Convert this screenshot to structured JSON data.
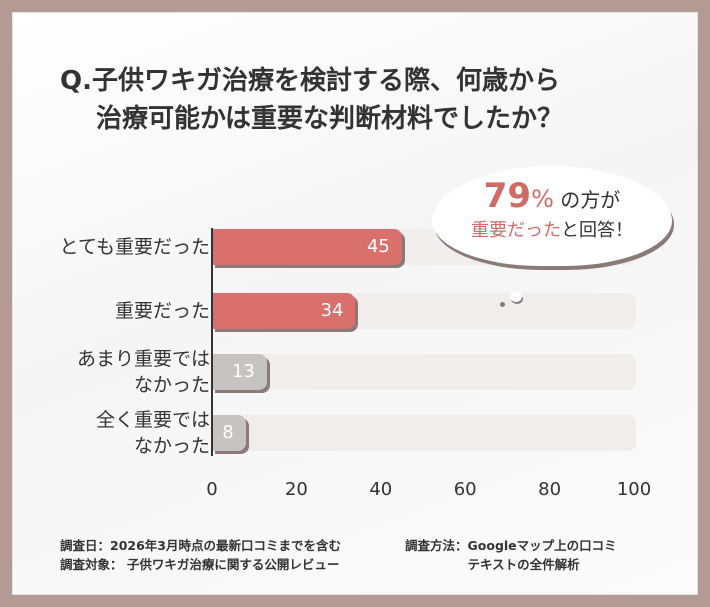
{
  "title": [
    "Q.子供ワキガ治療を検討する際、何歳から",
    "治療可能かは重要な判断材料でしたか？"
  ],
  "callout": {
    "percent": "79",
    "percent_sign": "%",
    "line1_rest": "の方が",
    "line2_accent": "重要だった",
    "line2_rest": "と回答！"
  },
  "chart_data": {
    "type": "bar",
    "orientation": "horizontal",
    "categories": [
      "とても重要だった",
      "重要だった",
      "あまり重要ではなかった",
      "全く重要ではなかった"
    ],
    "category_lines": [
      [
        "とても重要だった"
      ],
      [
        "重要だった"
      ],
      [
        "あまり重要では",
        "なかった"
      ],
      [
        "全く重要では",
        "なかった"
      ]
    ],
    "values": [
      45,
      34,
      13,
      8
    ],
    "xlim": [
      0,
      100
    ],
    "xticks": [
      "0",
      "20",
      "40",
      "60",
      "80",
      "100"
    ],
    "colors": [
      "#d9706e",
      "#d9706e",
      "#c8c3c3",
      "#c8c3c3"
    ],
    "track_color": "#f1eded"
  },
  "footer": {
    "date_label": "調査日：2026年3月時点の最新口コミまでを含む",
    "target_label": "調査対象： 子供ワキガ治療に関する公開レビュー",
    "method_label": "調査方法：",
    "method_line1": "Googleマップ上の口コミ",
    "method_line2": "テキストの全件解析"
  }
}
